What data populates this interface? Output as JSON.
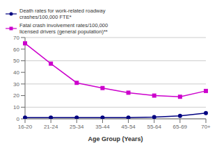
{
  "chart_data": {
    "type": "line",
    "categories": [
      "16-20",
      "21-24",
      "25-34",
      "35-44",
      "45-54",
      "55-64",
      "65-69",
      "70+"
    ],
    "series": [
      {
        "name": "Death rates for work-related roadway\ncrashes/100,000 FTE*",
        "color": "#000080",
        "marker": "circle",
        "values": [
          1.0,
          1.0,
          1.0,
          1.0,
          1.0,
          1.5,
          2.5,
          5.0
        ]
      },
      {
        "name": "Fatal crash involvement rates/100,000\nlicensed drivers (general population)**",
        "color": "#CC00CC",
        "marker": "square",
        "values": [
          65.0,
          47.5,
          31.0,
          26.5,
          22.5,
          20.0,
          19.0,
          24.0
        ]
      }
    ],
    "xlabel": "Age Group (Years)",
    "ylim": [
      0,
      70
    ],
    "yticks": [
      0,
      10,
      20,
      30,
      40,
      50,
      60,
      70
    ],
    "grid": true,
    "legend": "upper right"
  }
}
